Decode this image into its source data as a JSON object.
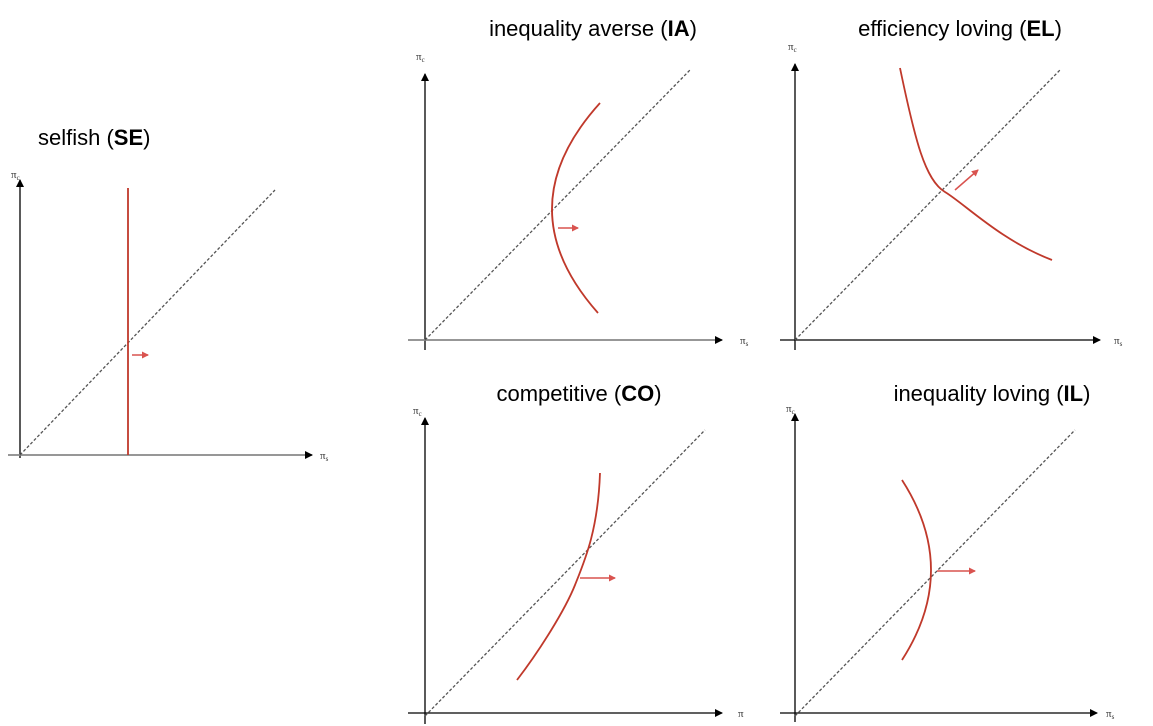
{
  "panels": [
    {
      "title": {
        "prefix": "selfish (",
        "abbr": "SE",
        "suffix": ")"
      },
      "y_label": {
        "symbol": "π",
        "sub": "c"
      },
      "x_label": {
        "symbol": "π",
        "sub": "s"
      }
    },
    {
      "title": {
        "prefix": "inequality averse (",
        "abbr": "IA",
        "suffix": ")"
      },
      "y_label": {
        "symbol": "π",
        "sub": "c"
      },
      "x_label": {
        "symbol": "π",
        "sub": "s"
      }
    },
    {
      "title": {
        "prefix": "efficiency loving (",
        "abbr": "EL",
        "suffix": ")"
      },
      "y_label": {
        "symbol": "π",
        "sub": "c"
      },
      "x_label": {
        "symbol": "π",
        "sub": "s"
      }
    },
    {
      "title": {
        "prefix": "competitive (",
        "abbr": "CO",
        "suffix": ")"
      },
      "y_label": {
        "symbol": "π",
        "sub": "c"
      },
      "x_label": {
        "symbol": "π"
      }
    },
    {
      "title": {
        "prefix": "inequality loving (",
        "abbr": "IL",
        "suffix": ")"
      },
      "y_label": {
        "symbol": "π",
        "sub": "c"
      },
      "x_label": {
        "symbol": "π",
        "sub": "s"
      }
    }
  ]
}
